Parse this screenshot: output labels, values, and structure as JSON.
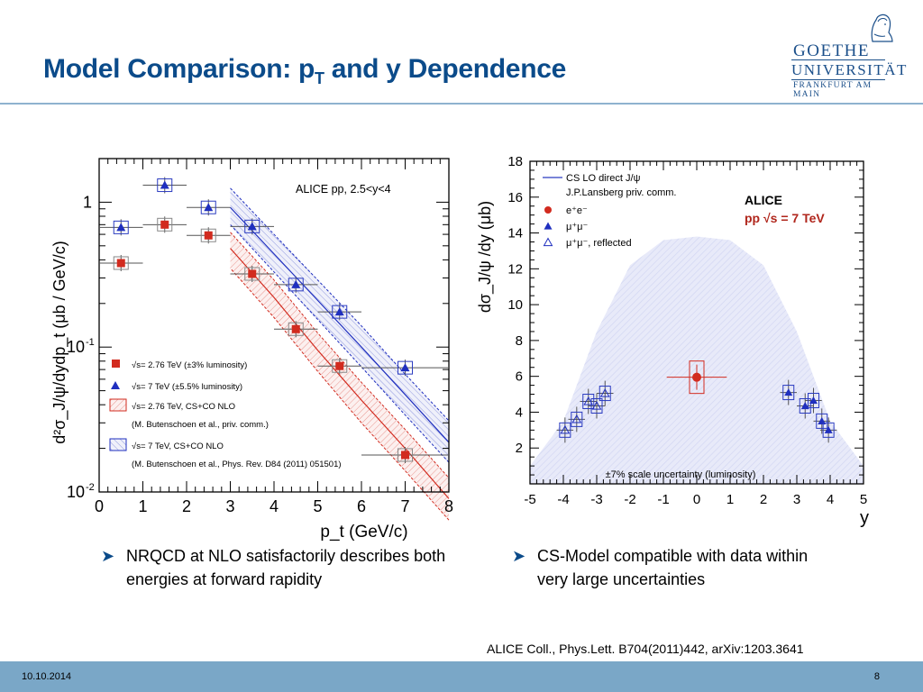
{
  "slide": {
    "title_main": "Model Comparison: p",
    "title_sub": "T",
    "title_tail": " and y Dependence",
    "logo": {
      "line1": "GOETHE",
      "line2": "UNIVERSITÄT",
      "line3": "FRANKFURT AM MAIN"
    },
    "bullets": [
      "NRQCD at NLO satisfactorily describes both energies at forward rapidity",
      "CS-Model compatible with data within very large uncertainties"
    ],
    "reference": "ALICE Coll., Phys.Lett. B704(2011)442, arXiv:1203.3641",
    "footer": {
      "date": "10.10.2014",
      "page": "8"
    },
    "colors": {
      "title": "#0b4b8a",
      "footer": "#7aa7c7",
      "red": "#d22b1f",
      "blue": "#1f2fbf"
    }
  },
  "chart_data": [
    {
      "type": "scatter",
      "title": "ALICE pp, 2.5<y<4",
      "xlabel": "p_t (GeV/c)",
      "ylabel": "d²σ_J/ψ/dydp_t (μb / GeV/c)",
      "xlim": [
        0,
        8
      ],
      "ylim": [
        0.01,
        2
      ],
      "yscale": "log",
      "x_ticks": [
        "0",
        "1",
        "2",
        "3",
        "4",
        "5",
        "6",
        "7",
        "8"
      ],
      "y_ticks": [
        {
          "value": 1,
          "label": "1"
        },
        {
          "value": 0.1,
          "label": "10-1"
        },
        {
          "value": 0.01,
          "label": "10-2"
        }
      ],
      "series": [
        {
          "name": "√s= 2.76 TeV (±3% luminosity)",
          "marker": "square",
          "color": "#d22b1f",
          "x": [
            0.5,
            1.5,
            2.5,
            3.5,
            4.5,
            5.5,
            7.0
          ],
          "y": [
            0.38,
            0.7,
            0.59,
            0.32,
            0.133,
            0.074,
            0.018
          ],
          "xerr": [
            0.5,
            0.5,
            0.5,
            0.5,
            0.5,
            0.5,
            1.0
          ]
        },
        {
          "name": "√s= 7 TeV (±5.5% luminosity)",
          "marker": "triangle",
          "color": "#1f2fbf",
          "x": [
            0.5,
            1.5,
            2.5,
            3.5,
            4.5,
            5.5,
            7.0
          ],
          "y": [
            0.67,
            1.31,
            0.92,
            0.68,
            0.27,
            0.175,
            0.072
          ],
          "xerr": [
            0.5,
            0.5,
            0.5,
            0.5,
            0.5,
            0.5,
            1.0
          ]
        }
      ],
      "bands": [
        {
          "name": "√s= 2.76 TeV, CS+CO NLO",
          "ref": "(M. Butenschoen et al., priv. comm.)",
          "color": "#d22b1f",
          "x": [
            3,
            4,
            5,
            6,
            7,
            8
          ],
          "center": [
            0.48,
            0.22,
            0.095,
            0.043,
            0.02,
            0.009
          ],
          "low": [
            0.35,
            0.16,
            0.068,
            0.03,
            0.014,
            0.0064
          ],
          "high": [
            0.62,
            0.29,
            0.125,
            0.057,
            0.027,
            0.0125
          ]
        },
        {
          "name": "√s= 7 TeV, CS+CO NLO",
          "ref": "(M. Butenschoen et al., Phys. Rev. D84 (2011) 051501)",
          "color": "#1f2fbf",
          "x": [
            3,
            4,
            5,
            6,
            7,
            8
          ],
          "center": [
            0.92,
            0.44,
            0.21,
            0.1,
            0.047,
            0.022
          ],
          "low": [
            0.7,
            0.33,
            0.155,
            0.073,
            0.034,
            0.016
          ],
          "high": [
            1.25,
            0.6,
            0.29,
            0.14,
            0.065,
            0.031
          ]
        }
      ]
    },
    {
      "type": "scatter",
      "xlabel": "y",
      "ylabel": "dσ_J/ψ /dy (μb)",
      "xlim": [
        -5,
        5
      ],
      "ylim": [
        0,
        18
      ],
      "x_ticks": [
        "-5",
        "-4",
        "-3",
        "-2",
        "-1",
        "0",
        "1",
        "2",
        "3",
        "4",
        "5"
      ],
      "y_ticks": [
        "2",
        "4",
        "6",
        "8",
        "10",
        "12",
        "14",
        "16",
        "18"
      ],
      "legend": [
        "CS LO direct J/ψ",
        "J.P.Lansberg priv. comm.",
        "e⁺e⁻",
        "μ⁺μ⁻",
        "μ⁺μ⁻, reflected"
      ],
      "experiment_label": "ALICE",
      "energy_label": "pp  √s = 7 TeV",
      "annotation": "±7% scale uncertainty (luminosity)",
      "series": [
        {
          "name": "e⁺e⁻",
          "marker": "circle",
          "color": "#d22b1f",
          "x": [
            0.0
          ],
          "y": [
            5.95
          ],
          "xerr": [
            0.9
          ]
        },
        {
          "name": "μ⁺μ⁻",
          "marker": "triangle",
          "color": "#1f2fbf",
          "x": [
            2.75,
            3.25,
            3.5,
            3.75,
            3.95
          ],
          "y": [
            5.1,
            4.35,
            4.65,
            3.5,
            3.0
          ],
          "xerr": [
            0.25,
            0.25,
            0.25,
            0.25,
            0.25
          ]
        },
        {
          "name": "μ⁺μ⁻, reflected",
          "marker": "triangle-open",
          "color": "#1f2fbf",
          "x": [
            -3.95,
            -3.6,
            -3.25,
            -3.0,
            -2.75
          ],
          "y": [
            3.0,
            3.6,
            4.6,
            4.35,
            5.05
          ],
          "xerr": [
            0.25,
            0.25,
            0.25,
            0.25,
            0.25
          ]
        }
      ],
      "band": {
        "name": "CS LO direct J/ψ",
        "color": "#c9cdf0",
        "x": [
          -5,
          -4,
          -3,
          -2,
          -1,
          0,
          1,
          2,
          3,
          4,
          5
        ],
        "high": [
          1.0,
          3.5,
          8.5,
          12.2,
          13.6,
          13.8,
          13.6,
          12.2,
          8.5,
          3.5,
          1.0
        ],
        "low": [
          0,
          0,
          0,
          0,
          0,
          0,
          0,
          0,
          0,
          0,
          0
        ]
      }
    }
  ]
}
